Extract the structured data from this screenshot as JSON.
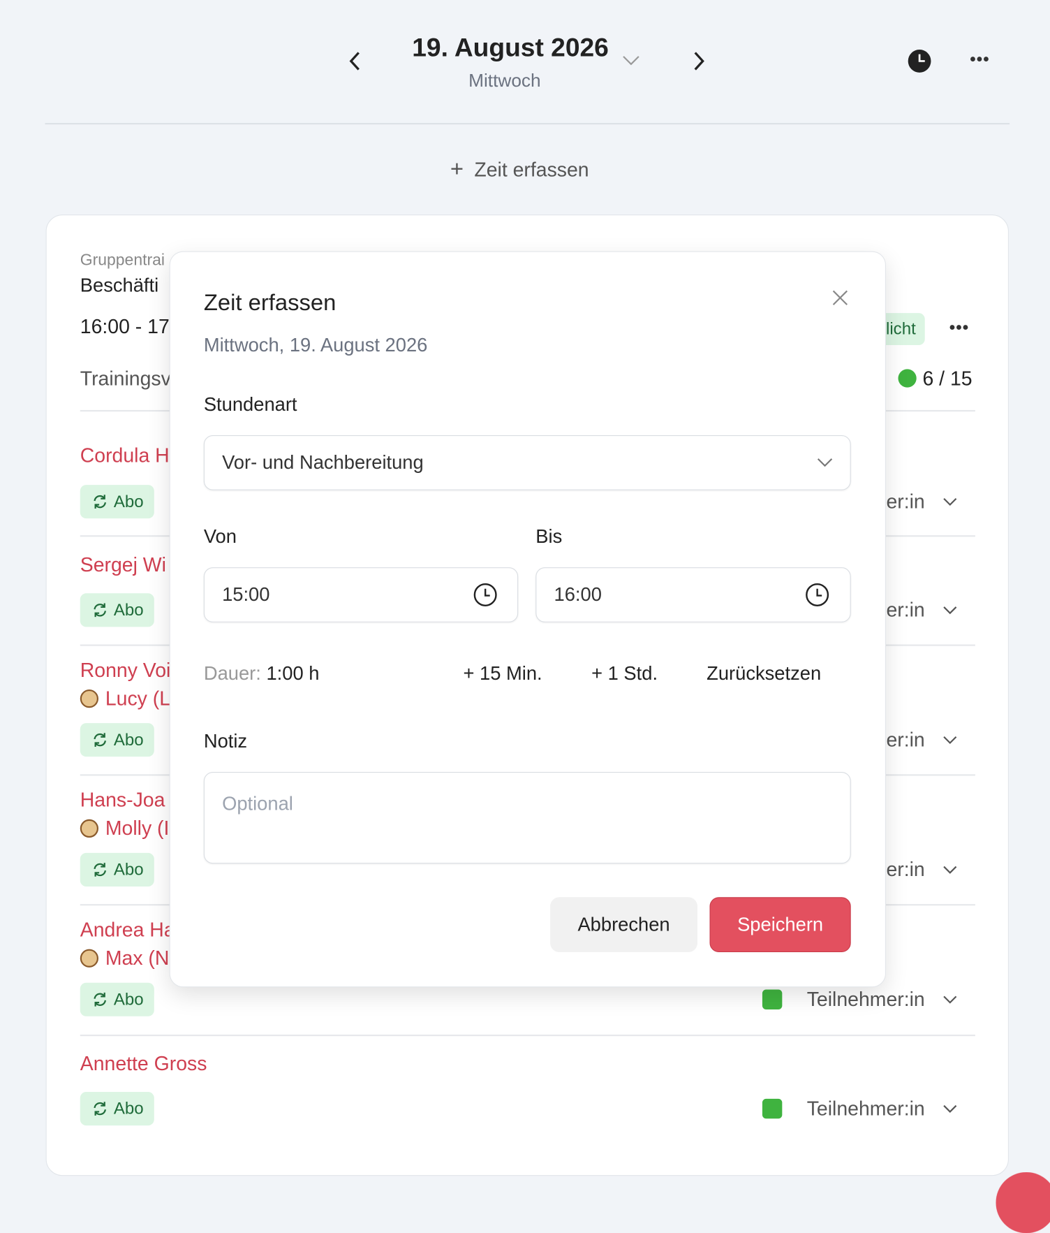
{
  "header": {
    "date": "19. August 2026",
    "weekday": "Mittwoch"
  },
  "add_button": "Zeit erfassen",
  "card": {
    "category": "Gruppentrai",
    "title": "Beschäfti",
    "time": "16:00 - 17",
    "status": "licht",
    "topic": "Trainingsv",
    "capacity": "6 / 15",
    "participants": [
      {
        "name": "Cordula H",
        "badge": "Abo",
        "role": "Teilnehmer:in"
      },
      {
        "name": "Sergej Wi",
        "badge": "Abo",
        "role": "Teilnehmer:in"
      },
      {
        "name": "Ronny Voi",
        "dog": "Lucy (L",
        "badge": "Abo",
        "role": "Teilnehmer:in"
      },
      {
        "name": "Hans-Joa",
        "dog": "Molly (I",
        "badge": "Abo",
        "role": "Teilnehmer:in"
      },
      {
        "name": "Andrea Ha",
        "dog": "Max (N",
        "badge": "Abo",
        "role": "Teilnehmer:in"
      },
      {
        "name": "Annette Gross",
        "badge": "Abo",
        "role": "Teilnehmer:in"
      }
    ]
  },
  "modal": {
    "title": "Zeit erfassen",
    "subtitle": "Mittwoch, 19. August 2026",
    "type_label": "Stundenart",
    "type_value": "Vor- und Nachbereitung",
    "from_label": "Von",
    "from_value": "15:00",
    "to_label": "Bis",
    "to_value": "16:00",
    "duration_label": "Dauer:",
    "duration_value": "1:00 h",
    "quick_actions": [
      "+ 15 Min.",
      "+ 1 Std.",
      "Zurücksetzen"
    ],
    "note_label": "Notiz",
    "note_placeholder": "Optional",
    "cancel": "Abbrechen",
    "save": "Speichern"
  }
}
